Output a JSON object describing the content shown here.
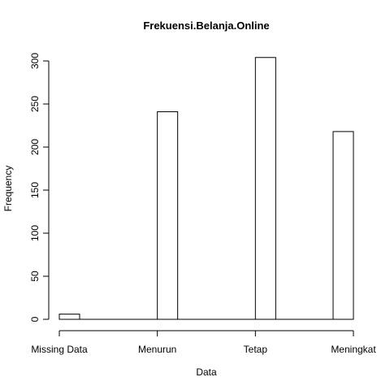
{
  "chart_data": {
    "type": "bar",
    "title": "Frekuensi.Belanja.Online",
    "xlabel": "Data",
    "ylabel": "Frequency",
    "categories": [
      "Missing Data",
      "Menurun",
      "Tetap",
      "Meningkat"
    ],
    "values": [
      6,
      241,
      304,
      218
    ],
    "ylim": [
      0,
      300
    ],
    "yticks": [
      0,
      50,
      100,
      150,
      200,
      250,
      300
    ],
    "grid": false,
    "legend": "none",
    "bar_fill": "#ffffff",
    "bar_stroke": "#000000"
  }
}
